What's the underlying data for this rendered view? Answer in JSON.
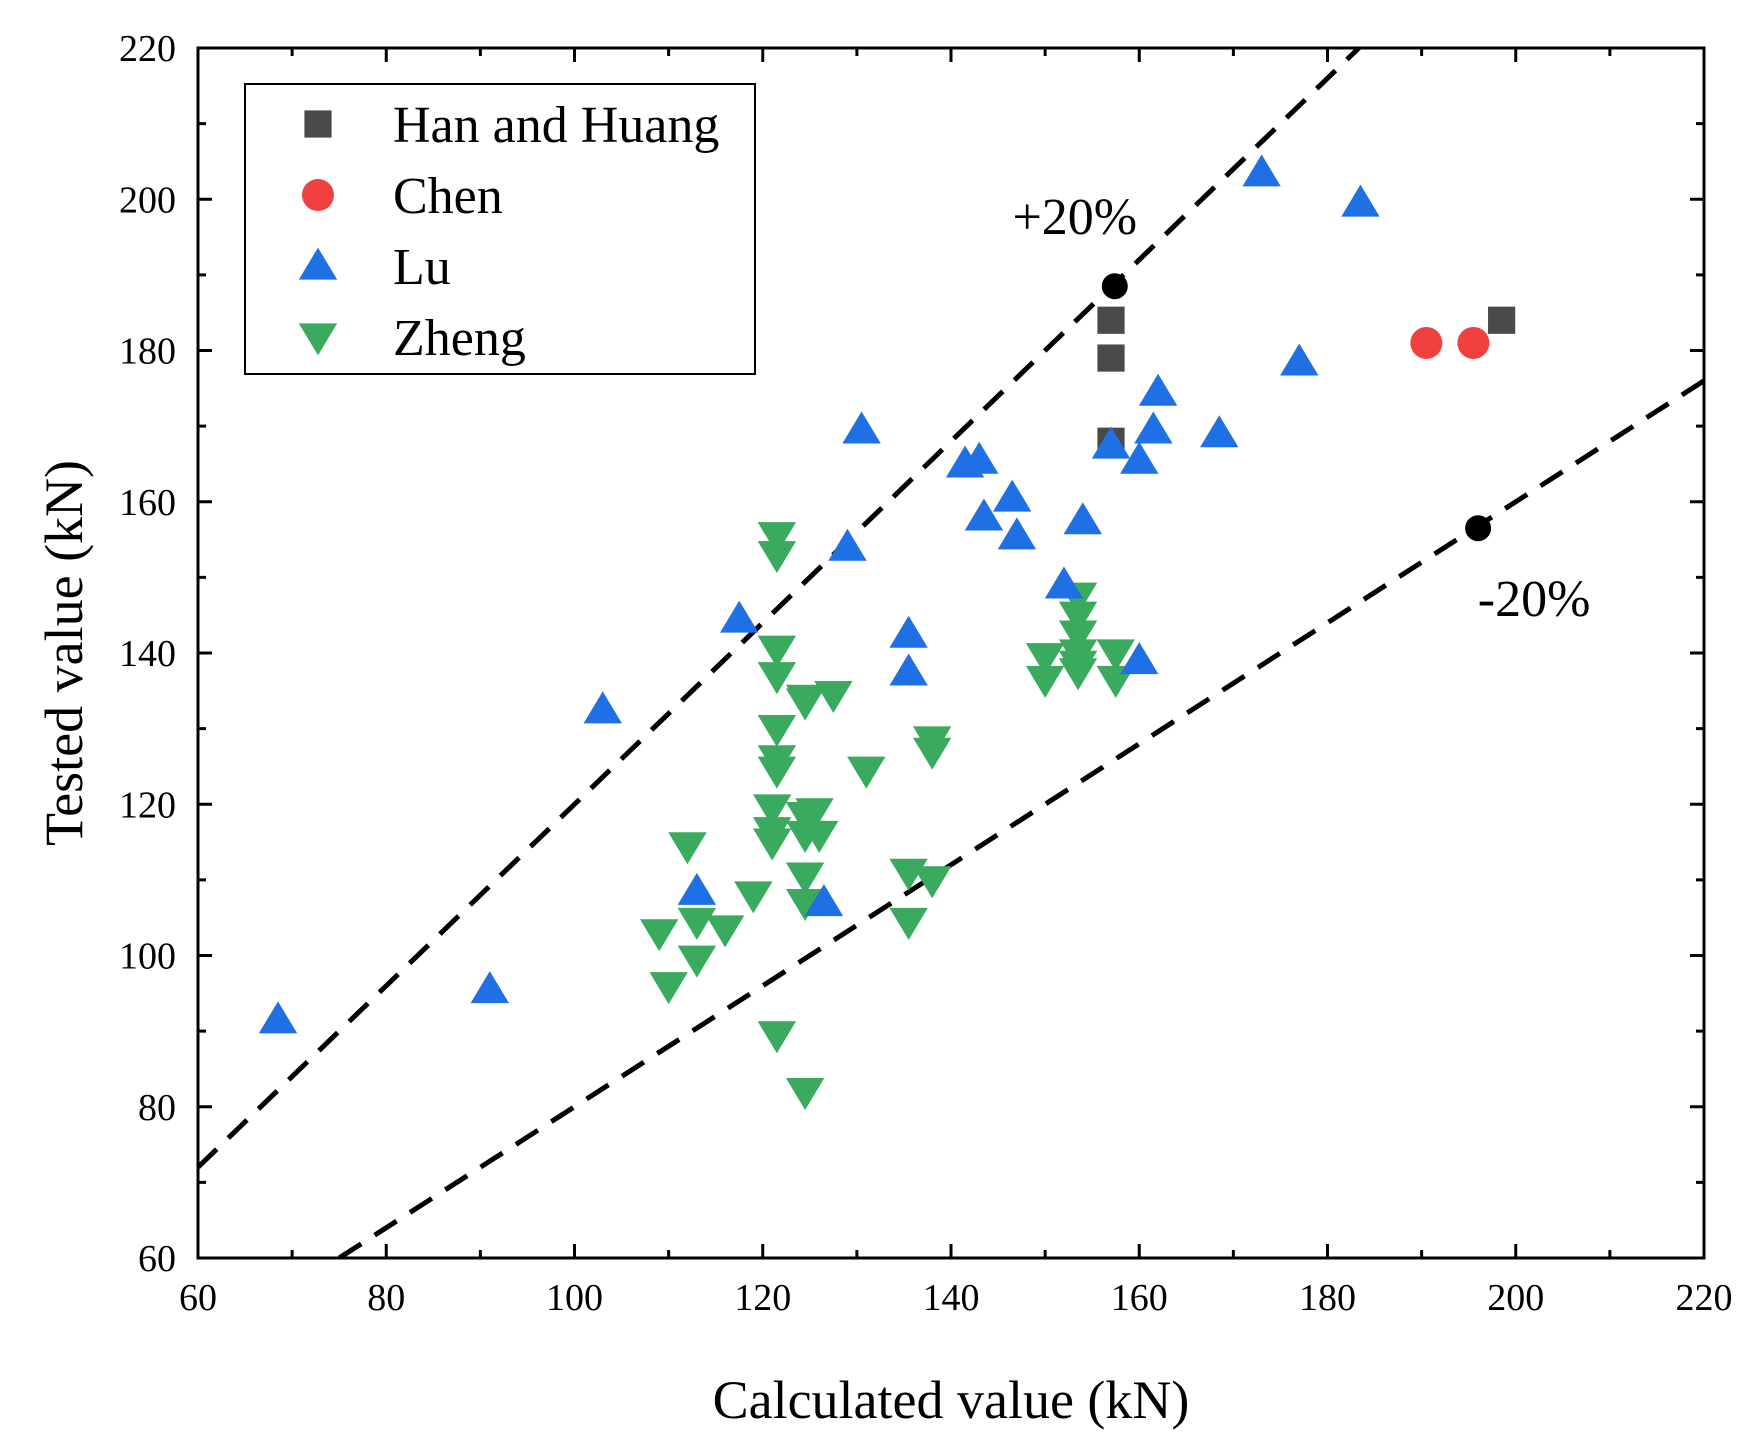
{
  "chart_data": {
    "type": "scatter",
    "xlabel": "Calculated value (kN)",
    "ylabel": "Tested value (kN)",
    "xlim": [
      60,
      220
    ],
    "ylim": [
      60,
      220
    ],
    "x_ticks": [
      "60",
      "80",
      "100",
      "120",
      "140",
      "160",
      "180",
      "200",
      "220"
    ],
    "y_ticks": [
      "60",
      "80",
      "100",
      "120",
      "140",
      "160",
      "180",
      "200",
      "220"
    ],
    "grid": false,
    "legend_position": "top-left",
    "series": [
      {
        "name": "Han and Huang",
        "marker": "square",
        "color": "#4a4a4a",
        "points": [
          [
            157,
            184
          ],
          [
            157,
            179
          ],
          [
            157,
            168
          ],
          [
            198.5,
            184
          ]
        ]
      },
      {
        "name": "Chen",
        "marker": "circle",
        "color": "#f04040",
        "points": [
          [
            190.5,
            181
          ],
          [
            195.5,
            181
          ]
        ]
      },
      {
        "name": "Lu",
        "marker": "triangle-up",
        "color": "#1f6fe5",
        "points": [
          [
            68.5,
            91.5
          ],
          [
            91,
            95.5
          ],
          [
            103,
            132.5
          ],
          [
            113,
            108.5
          ],
          [
            117.5,
            144.5
          ],
          [
            126.5,
            107
          ],
          [
            129,
            154
          ],
          [
            130.5,
            169.5
          ],
          [
            135.5,
            142.5
          ],
          [
            135.5,
            137.5
          ],
          [
            141.5,
            165
          ],
          [
            143,
            165.5
          ],
          [
            143.5,
            158
          ],
          [
            146.5,
            160.5
          ],
          [
            147,
            155.5
          ],
          [
            152,
            149
          ],
          [
            154,
            157.5
          ],
          [
            157,
            167.5
          ],
          [
            160,
            165.5
          ],
          [
            160,
            139
          ],
          [
            161.5,
            169.5
          ],
          [
            162,
            174.5
          ],
          [
            168.5,
            169
          ],
          [
            173,
            203.5
          ],
          [
            177,
            178.5
          ],
          [
            183.5,
            199.5
          ]
        ]
      },
      {
        "name": "Zheng",
        "marker": "triangle-down",
        "color": "#3aaa5e",
        "points": [
          [
            109,
            103
          ],
          [
            110,
            96
          ],
          [
            112,
            114.5
          ],
          [
            113,
            104.5
          ],
          [
            113,
            99.5
          ],
          [
            116,
            103.5
          ],
          [
            119,
            108
          ],
          [
            121,
            119.5
          ],
          [
            121,
            116.5
          ],
          [
            121,
            115
          ],
          [
            121.5,
            155.5
          ],
          [
            121.5,
            153
          ],
          [
            121.5,
            140.5
          ],
          [
            121.5,
            137
          ],
          [
            121.5,
            130
          ],
          [
            121.5,
            126
          ],
          [
            121.5,
            124.5
          ],
          [
            121.5,
            89.5
          ],
          [
            124.5,
            134
          ],
          [
            124.5,
            133.5
          ],
          [
            124.5,
            118.5
          ],
          [
            124.5,
            116
          ],
          [
            124.5,
            110.5
          ],
          [
            124.5,
            107
          ],
          [
            124.5,
            82
          ],
          [
            125.5,
            119
          ],
          [
            126,
            116
          ],
          [
            127.5,
            134.5
          ],
          [
            131,
            124.5
          ],
          [
            135.5,
            111
          ],
          [
            135.5,
            104.5
          ],
          [
            138,
            128.5
          ],
          [
            138,
            127
          ],
          [
            138,
            110
          ],
          [
            150,
            139.5
          ],
          [
            150,
            136.5
          ],
          [
            153.5,
            147.5
          ],
          [
            153.5,
            145
          ],
          [
            153.5,
            142.5
          ],
          [
            153.5,
            140
          ],
          [
            153.5,
            138.5
          ],
          [
            153.5,
            137.5
          ],
          [
            157.5,
            140
          ],
          [
            157.5,
            136.5
          ]
        ]
      }
    ],
    "reference_lines": [
      {
        "slope": 1.2,
        "style": "dashed",
        "label": "+20%",
        "anchor": [
          157.4,
          188.5
        ]
      },
      {
        "slope": 0.8,
        "style": "dashed",
        "label": "-20%",
        "anchor": [
          196,
          156.5
        ]
      }
    ]
  }
}
